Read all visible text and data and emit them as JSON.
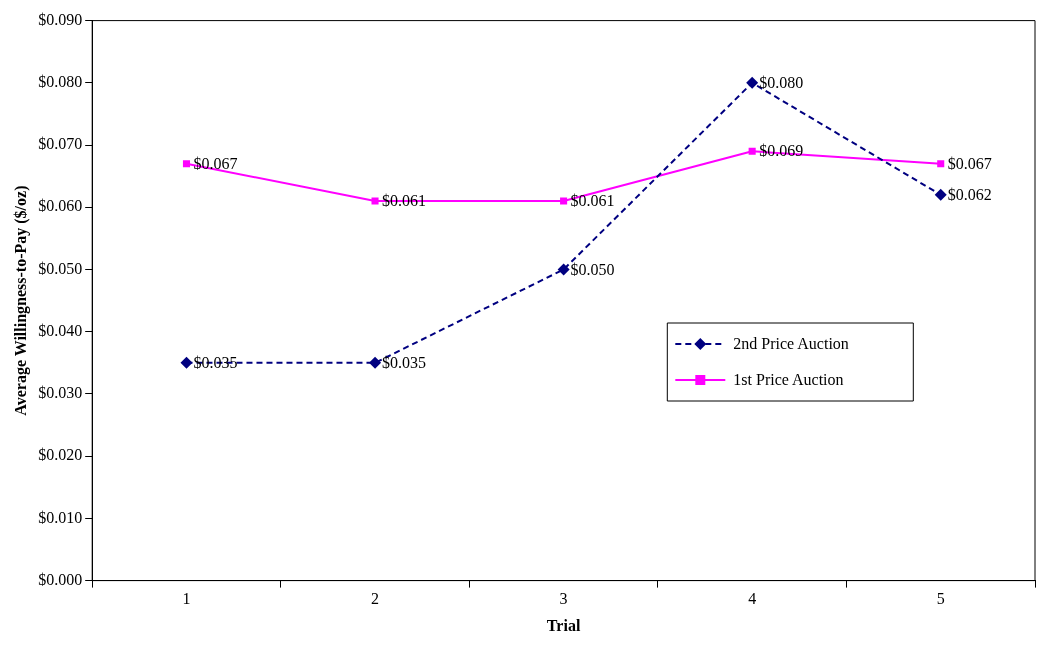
{
  "chart_data": {
    "type": "line",
    "xlabel": "Trial",
    "ylabel": "Average Willingness-to-Pay ($/oz)",
    "categories": [
      "1",
      "2",
      "3",
      "4",
      "5"
    ],
    "series": [
      {
        "name": "2nd Price Auction",
        "color": "#000080",
        "marker": "diamond",
        "line_style": "dashed",
        "values": [
          0.035,
          0.035,
          0.05,
          0.08,
          0.062
        ],
        "value_labels": [
          "$0.035",
          "$0.035",
          "$0.050",
          "$0.080",
          "$0.062"
        ]
      },
      {
        "name": "1st Price Auction",
        "color": "#ff00ff",
        "marker": "square",
        "line_style": "solid",
        "values": [
          0.067,
          0.061,
          0.061,
          0.069,
          0.067
        ],
        "value_labels": [
          "$0.067",
          "$0.061",
          "$0.061",
          "$0.069",
          "$0.067"
        ]
      }
    ],
    "ylim": [
      0,
      0.09
    ],
    "yticks": [
      {
        "value": 0,
        "label": "$0.000"
      },
      {
        "value": 0.01,
        "label": "$0.010"
      },
      {
        "value": 0.02,
        "label": "$0.020"
      },
      {
        "value": 0.03,
        "label": "$0.030"
      },
      {
        "value": 0.04,
        "label": "$0.040"
      },
      {
        "value": 0.05,
        "label": "$0.050"
      },
      {
        "value": 0.06,
        "label": "$0.060"
      },
      {
        "value": 0.07,
        "label": "$0.070"
      },
      {
        "value": 0.08,
        "label": "$0.080"
      },
      {
        "value": 0.09,
        "label": "$0.090"
      }
    ],
    "grid": false,
    "legend": "right"
  }
}
